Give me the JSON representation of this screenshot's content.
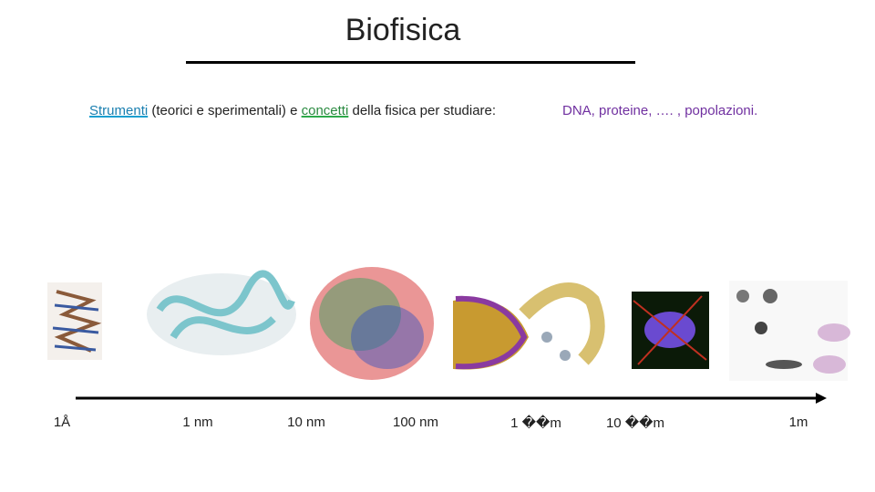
{
  "header": {
    "title": "Biofisica"
  },
  "subtitle": [
    "Strumenti",
    " (teorici e sperimentali) e ",
    "concetti",
    " della fisica per studiare:",
    "DNA, proteine, …. , popolazioni."
  ],
  "scale": [
    "1Å",
    "1 nm",
    "10 nm",
    "100 nm",
    "1 ��m",
    "10 ��m",
    "1m"
  ]
}
